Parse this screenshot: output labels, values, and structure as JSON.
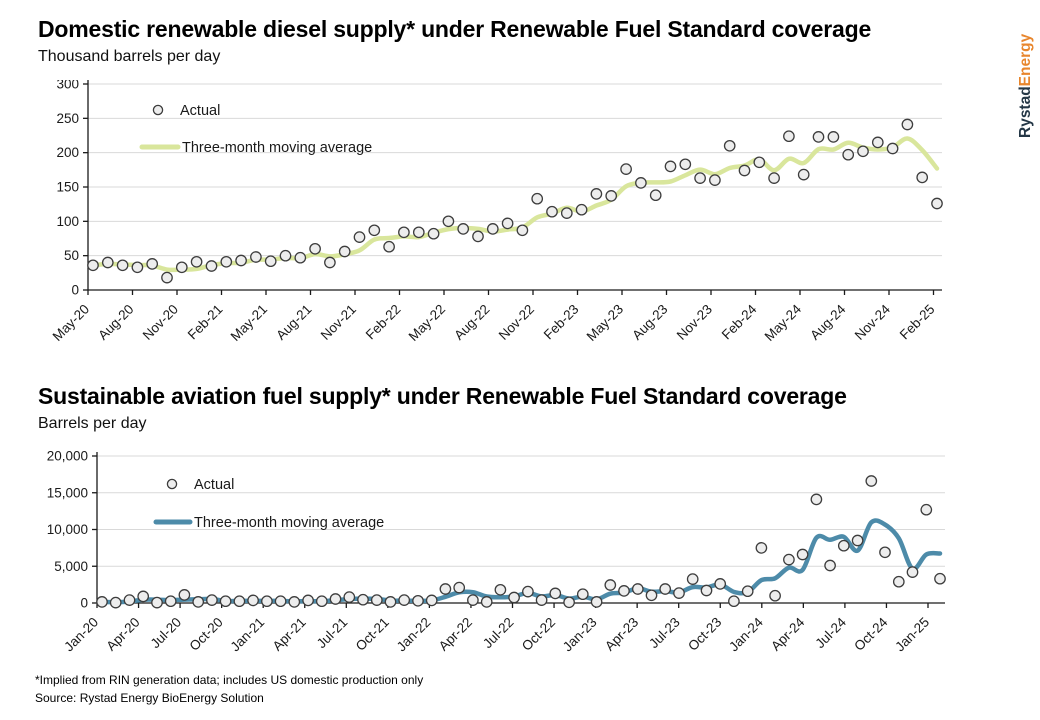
{
  "logo": {
    "part1": "Rystad",
    "part2": "Energy",
    "part1_color": "#243746",
    "part2_color": "#e8862d"
  },
  "footer": {
    "note": "*Implied from RIN generation data; includes US domestic production only",
    "source": "Source: Rystad Energy BioEnergy Solution"
  },
  "chart_data": [
    {
      "type": "scatter",
      "title": "Domestic renewable diesel supply* under Renewable Fuel Standard coverage",
      "subtitle": "Thousand barrels per day",
      "legend": [
        "Actual",
        "Three-month moving average"
      ],
      "legend_position": "top-left-inside",
      "grid": true,
      "ylim": [
        0,
        300
      ],
      "y_ticks": [
        0,
        50,
        100,
        150,
        200,
        250,
        300
      ],
      "y_tick_labels": [
        "0",
        "50",
        "100",
        "150",
        "200",
        "250",
        "300"
      ],
      "x_tick_every": 3,
      "x_tick_labels": [
        "May-20",
        "Aug-20",
        "Nov-20",
        "Feb-21",
        "May-21",
        "Aug-21",
        "Nov-21",
        "Feb-22",
        "May-22",
        "Aug-22",
        "Nov-22",
        "Feb-23",
        "May-23",
        "Aug-23",
        "Nov-23",
        "Feb-24",
        "May-24",
        "Aug-24",
        "Nov-24",
        "Feb-25"
      ],
      "categories": [
        "May-20",
        "Jun-20",
        "Jul-20",
        "Aug-20",
        "Sep-20",
        "Oct-20",
        "Nov-20",
        "Dec-20",
        "Jan-21",
        "Feb-21",
        "Mar-21",
        "Apr-21",
        "May-21",
        "Jun-21",
        "Jul-21",
        "Aug-21",
        "Sep-21",
        "Oct-21",
        "Nov-21",
        "Dec-21",
        "Jan-22",
        "Feb-22",
        "Mar-22",
        "Apr-22",
        "May-22",
        "Jun-22",
        "Jul-22",
        "Aug-22",
        "Sep-22",
        "Oct-22",
        "Nov-22",
        "Dec-22",
        "Jan-23",
        "Feb-23",
        "Mar-23",
        "Apr-23",
        "May-23",
        "Jun-23",
        "Jul-23",
        "Aug-23",
        "Sep-23",
        "Oct-23",
        "Nov-23",
        "Dec-23",
        "Jan-24",
        "Feb-24",
        "Mar-24",
        "Apr-24",
        "May-24",
        "Jun-24",
        "Jul-24",
        "Aug-24",
        "Sep-24",
        "Oct-24",
        "Nov-24",
        "Dec-24",
        "Jan-25",
        "Feb-25"
      ],
      "values": [
        36,
        40,
        36,
        33,
        38,
        18,
        33,
        41,
        35,
        41,
        43,
        48,
        42,
        50,
        47,
        60,
        40,
        56,
        77,
        87,
        63,
        84,
        84,
        82,
        100,
        89,
        78,
        89,
        97,
        87,
        133,
        114,
        112,
        117,
        140,
        137,
        176,
        156,
        138,
        180,
        183,
        163,
        160,
        210,
        174,
        186,
        163,
        224,
        168,
        223,
        223,
        197,
        202,
        215,
        206,
        241,
        164,
        126
      ],
      "moving_average": "trailing-3-month",
      "line_color": "#d9e69c",
      "marker_fill": "#ededed",
      "marker_stroke": "#3d3d3d"
    },
    {
      "type": "scatter",
      "title": "Sustainable aviation fuel supply* under Renewable Fuel Standard coverage",
      "subtitle": "Barrels per day",
      "legend": [
        "Actual",
        "Three-month moving average"
      ],
      "legend_position": "top-left-inside",
      "grid": true,
      "ylim": [
        0,
        20000
      ],
      "y_ticks": [
        0,
        5000,
        10000,
        15000,
        20000
      ],
      "y_tick_labels": [
        "0",
        "5,000",
        "10,000",
        "15,000",
        "20,000"
      ],
      "x_tick_every": 3,
      "x_tick_labels": [
        "Jan-20",
        "Apr-20",
        "Jul-20",
        "Oct-20",
        "Jan-21",
        "Apr-21",
        "Jul-21",
        "Oct-21",
        "Jan-22",
        "Apr-22",
        "Jul-22",
        "Oct-22",
        "Jan-23",
        "Apr-23",
        "Jul-23",
        "Oct-23",
        "Jan-24",
        "Apr-24",
        "Jul-24",
        "Oct-24",
        "Jan-25"
      ],
      "categories": [
        "Jan-20",
        "Feb-20",
        "Mar-20",
        "Apr-20",
        "May-20",
        "Jun-20",
        "Jul-20",
        "Aug-20",
        "Sep-20",
        "Oct-20",
        "Nov-20",
        "Dec-20",
        "Jan-21",
        "Feb-21",
        "Mar-21",
        "Apr-21",
        "May-21",
        "Jun-21",
        "Jul-21",
        "Aug-21",
        "Sep-21",
        "Oct-21",
        "Nov-21",
        "Dec-21",
        "Jan-22",
        "Feb-22",
        "Mar-22",
        "Apr-22",
        "May-22",
        "Jun-22",
        "Jul-22",
        "Aug-22",
        "Sep-22",
        "Oct-22",
        "Nov-22",
        "Dec-22",
        "Jan-23",
        "Feb-23",
        "Mar-23",
        "Apr-23",
        "May-23",
        "Jun-23",
        "Jul-23",
        "Aug-23",
        "Sep-23",
        "Oct-23",
        "Nov-23",
        "Dec-23",
        "Jan-24",
        "Feb-24",
        "Mar-24",
        "Apr-24",
        "May-24",
        "Jun-24",
        "Jul-24",
        "Aug-24",
        "Sep-24",
        "Oct-24",
        "Nov-24",
        "Dec-24",
        "Jan-25",
        "Feb-25"
      ],
      "values": [
        150,
        50,
        400,
        900,
        50,
        250,
        1100,
        150,
        400,
        250,
        250,
        350,
        250,
        250,
        150,
        350,
        250,
        550,
        800,
        450,
        400,
        150,
        400,
        300,
        350,
        1900,
        2100,
        400,
        150,
        1800,
        750,
        1550,
        400,
        1300,
        100,
        1200,
        150,
        2450,
        1650,
        1900,
        1050,
        1900,
        1350,
        3250,
        1700,
        2600,
        250,
        1600,
        7500,
        1000,
        5900,
        6600,
        14100,
        5100,
        7800,
        8500,
        16600,
        6900,
        2900,
        4200,
        12700,
        3300
      ],
      "moving_average": "trailing-3-month",
      "line_color": "#4d8ba9",
      "marker_fill": "#ededed",
      "marker_stroke": "#3d3d3d"
    }
  ]
}
